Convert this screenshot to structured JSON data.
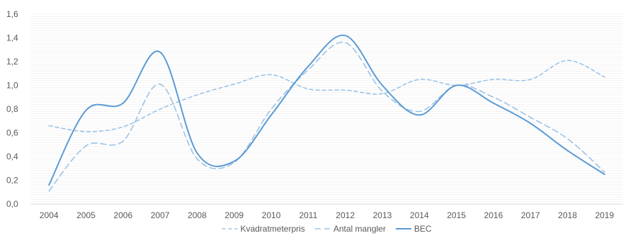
{
  "chart_data": {
    "type": "line",
    "title": "",
    "xlabel": "",
    "ylabel": "",
    "x": [
      "2004",
      "2005",
      "2006",
      "2007",
      "2008",
      "2009",
      "2010",
      "2011",
      "2012",
      "2013",
      "2014",
      "2015",
      "2016",
      "2017",
      "2018",
      "2019"
    ],
    "ylim": [
      0,
      1.6
    ],
    "yticks": [
      "0,0",
      "0,2",
      "0,4",
      "0,6",
      "0,8",
      "1,0",
      "1,2",
      "1,4",
      "1,6"
    ],
    "grid": true,
    "legend_position": "bottom",
    "series": [
      {
        "name": "Kvadratmeterpris",
        "dash": "dash",
        "color": "#9dc3e6",
        "values": [
          0.66,
          0.61,
          0.65,
          0.8,
          0.92,
          1.01,
          1.09,
          0.97,
          0.96,
          0.93,
          1.05,
          1.0,
          1.05,
          1.05,
          1.21,
          1.07
        ]
      },
      {
        "name": "Antal mangler",
        "dash": "longdash",
        "color": "#9dc3e6",
        "values": [
          0.11,
          0.49,
          0.53,
          1.01,
          0.38,
          0.35,
          0.8,
          1.13,
          1.36,
          0.95,
          0.78,
          1.0,
          0.9,
          0.73,
          0.55,
          0.27
        ]
      },
      {
        "name": "BEC",
        "dash": "solid",
        "color": "#5b9bd5",
        "values": [
          0.16,
          0.79,
          0.85,
          1.28,
          0.43,
          0.36,
          0.75,
          1.16,
          1.42,
          1.0,
          0.75,
          1.0,
          0.85,
          0.68,
          0.45,
          0.25
        ]
      }
    ]
  }
}
